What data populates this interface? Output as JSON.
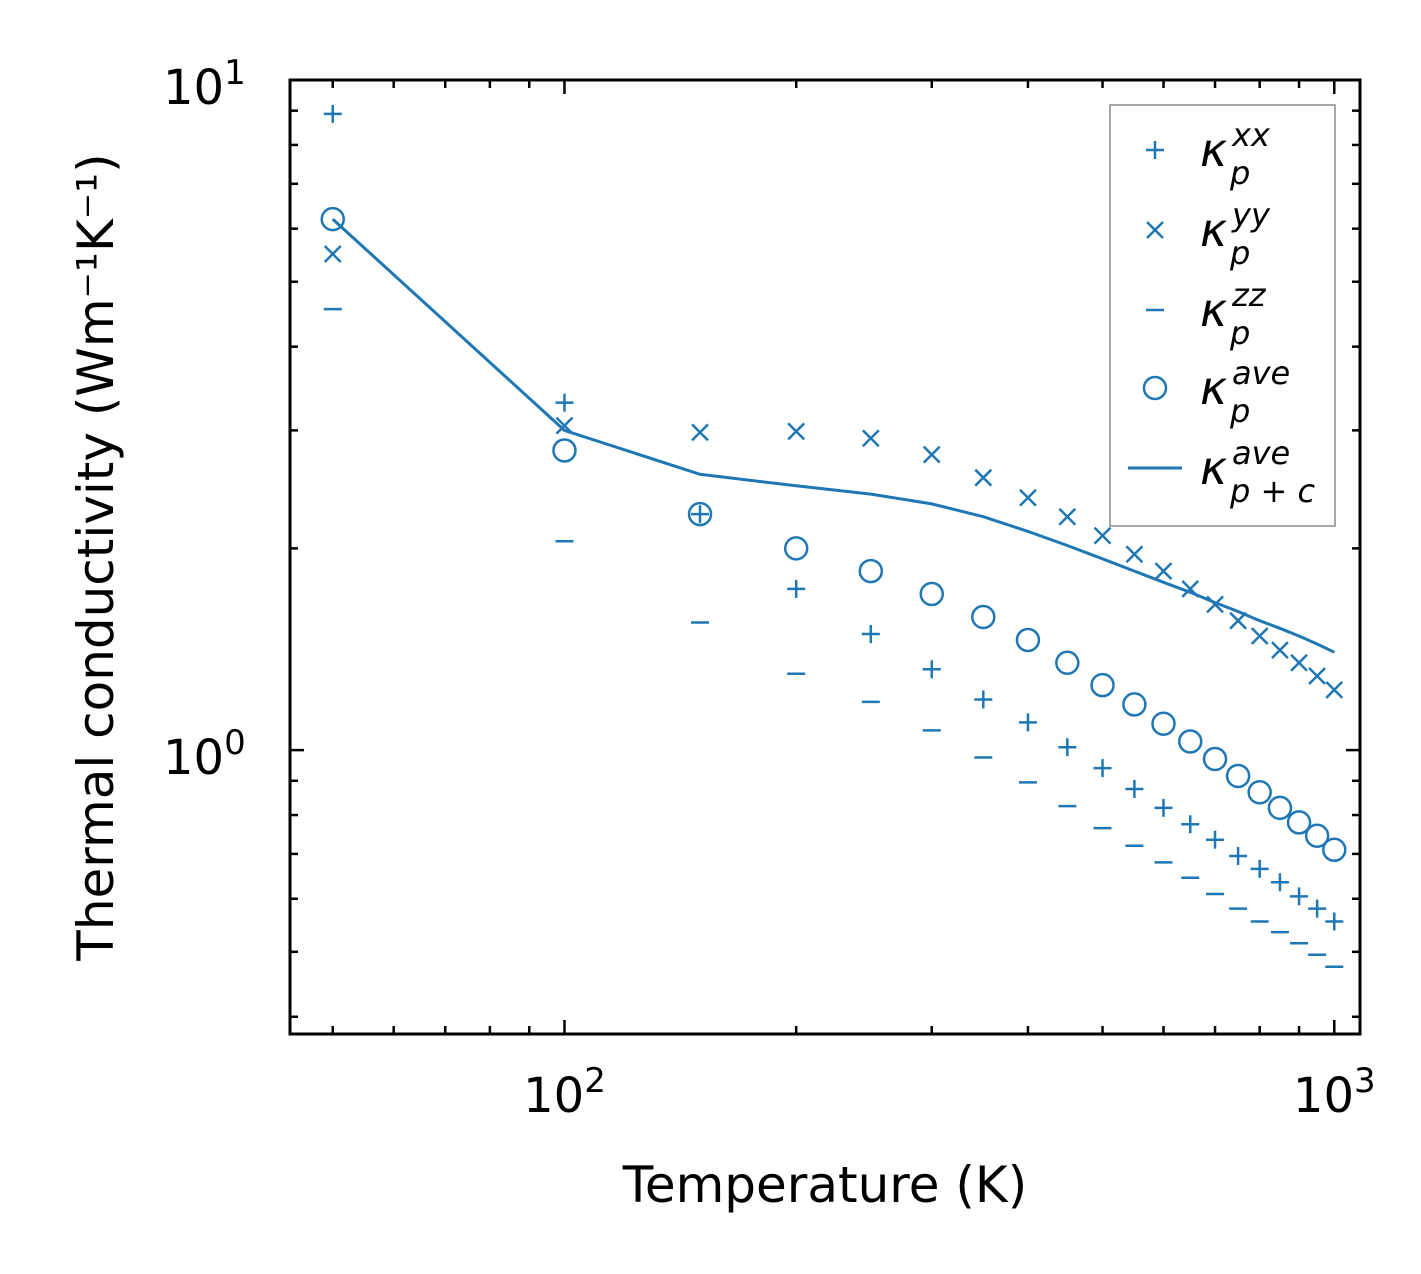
{
  "chart_data": {
    "type": "scatter",
    "scale": "log-log",
    "title": "",
    "xlabel": "Temperature (K)",
    "ylabel": "Thermal conductivity (Wm⁻¹K⁻¹)",
    "xlim": [
      44,
      1080
    ],
    "ylim": [
      0.377,
      10
    ],
    "x_ticks": [
      {
        "value": 100,
        "base": "10",
        "exp": "2"
      },
      {
        "value": 1000,
        "base": "10",
        "exp": "3"
      }
    ],
    "y_ticks": [
      {
        "value": 1,
        "base": "10",
        "exp": "0"
      },
      {
        "value": 10,
        "base": "10",
        "exp": "1"
      }
    ],
    "legend_position": "top-right",
    "color": "#1f77b4",
    "series": [
      {
        "name": "kxx",
        "legend_label": "κ",
        "sup": "xx",
        "sub": "p",
        "marker": "plus",
        "x": [
          50,
          100,
          150,
          200,
          250,
          300,
          350,
          400,
          450,
          500,
          550,
          600,
          650,
          700,
          750,
          800,
          850,
          900,
          950,
          1000
        ],
        "y": [
          8.9,
          3.3,
          2.25,
          1.74,
          1.49,
          1.32,
          1.19,
          1.1,
          1.01,
          0.94,
          0.875,
          0.82,
          0.775,
          0.735,
          0.695,
          0.665,
          0.635,
          0.605,
          0.58,
          0.555
        ]
      },
      {
        "name": "kyy",
        "legend_label": "κ",
        "sup": "yy",
        "sub": "p",
        "marker": "x",
        "x": [
          50,
          100,
          150,
          200,
          250,
          300,
          350,
          400,
          450,
          500,
          550,
          600,
          650,
          700,
          750,
          800,
          850,
          900,
          950,
          1000
        ],
        "y": [
          5.5,
          3.05,
          2.98,
          2.99,
          2.92,
          2.76,
          2.55,
          2.38,
          2.23,
          2.09,
          1.96,
          1.85,
          1.74,
          1.65,
          1.56,
          1.48,
          1.41,
          1.35,
          1.29,
          1.23
        ]
      },
      {
        "name": "kzz",
        "legend_label": "κ",
        "sup": "zz",
        "sub": "p",
        "marker": "dash",
        "x": [
          50,
          100,
          150,
          200,
          250,
          300,
          350,
          400,
          450,
          500,
          550,
          600,
          650,
          700,
          750,
          800,
          850,
          900,
          950,
          1000
        ],
        "y": [
          4.55,
          2.05,
          1.55,
          1.3,
          1.18,
          1.07,
          0.975,
          0.895,
          0.825,
          0.765,
          0.72,
          0.68,
          0.645,
          0.61,
          0.58,
          0.555,
          0.535,
          0.515,
          0.495,
          0.475
        ]
      },
      {
        "name": "kave",
        "legend_label": "κ",
        "sup": "ave",
        "sub": "p",
        "marker": "circle",
        "x": [
          50,
          100,
          150,
          200,
          250,
          300,
          350,
          400,
          450,
          500,
          550,
          600,
          650,
          700,
          750,
          800,
          850,
          900,
          950,
          1000
        ],
        "y": [
          6.2,
          2.8,
          2.25,
          2.0,
          1.85,
          1.71,
          1.58,
          1.46,
          1.35,
          1.25,
          1.17,
          1.095,
          1.03,
          0.97,
          0.915,
          0.865,
          0.82,
          0.78,
          0.745,
          0.71
        ]
      },
      {
        "name": "kave_pc",
        "legend_label": "κ",
        "sup": "ave",
        "sub": "p + c",
        "marker": "line",
        "x": [
          50,
          100,
          150,
          200,
          250,
          300,
          350,
          400,
          450,
          500,
          550,
          600,
          650,
          700,
          750,
          800,
          850,
          900,
          950,
          1000
        ],
        "y": [
          6.2,
          3.0,
          2.58,
          2.48,
          2.41,
          2.33,
          2.23,
          2.12,
          2.02,
          1.93,
          1.85,
          1.78,
          1.72,
          1.66,
          1.61,
          1.56,
          1.52,
          1.48,
          1.44,
          1.4
        ]
      }
    ]
  }
}
